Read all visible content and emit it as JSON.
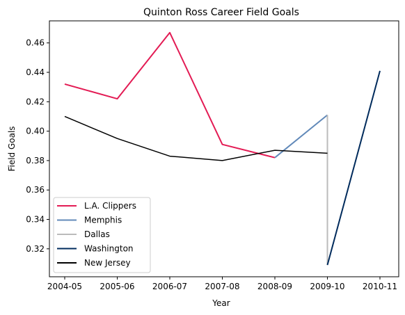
{
  "chart_data": {
    "type": "line",
    "title": "Quinton Ross Career Field Goals",
    "xlabel": "Year",
    "ylabel": "Field Goals",
    "categories": [
      "2004-05",
      "2005-06",
      "2006-07",
      "2007-08",
      "2008-09",
      "2009-10",
      "2010-11"
    ],
    "ylim": [
      0.301,
      0.475
    ],
    "yticks": [
      0.32,
      0.34,
      0.36,
      0.38,
      0.4,
      0.42,
      0.44,
      0.46
    ],
    "ytick_labels": [
      "0.32",
      "0.34",
      "0.36",
      "0.38",
      "0.40",
      "0.42",
      "0.44",
      "0.46"
    ],
    "grid": false,
    "legend_position": "lower-left",
    "series": [
      {
        "name": "L.A. Clippers",
        "color": "#e31b54",
        "points": [
          [
            "2004-05",
            0.432
          ],
          [
            "2005-06",
            0.422
          ],
          [
            "2006-07",
            0.467
          ],
          [
            "2007-08",
            0.391
          ],
          [
            "2008-09",
            0.382
          ]
        ]
      },
      {
        "name": "Memphis",
        "color": "#6189b9",
        "points": [
          [
            "2008-09",
            0.382
          ],
          [
            "2009-10",
            0.411
          ]
        ]
      },
      {
        "name": "Dallas",
        "color": "#bbbbbb",
        "points": [
          [
            "2009-10",
            0.411
          ],
          [
            "2009-10",
            0.309
          ]
        ]
      },
      {
        "name": "Washington",
        "color": "#002b5c",
        "points": [
          [
            "2009-10",
            0.309
          ],
          [
            "2010-11",
            0.441
          ]
        ]
      },
      {
        "name": "New Jersey",
        "color": "#000000",
        "points": [
          [
            "2004-05",
            0.41
          ],
          [
            "2005-06",
            0.395
          ],
          [
            "2006-07",
            0.383
          ],
          [
            "2007-08",
            0.38
          ],
          [
            "2008-09",
            0.387
          ],
          [
            "2009-10",
            0.385
          ]
        ]
      }
    ]
  }
}
